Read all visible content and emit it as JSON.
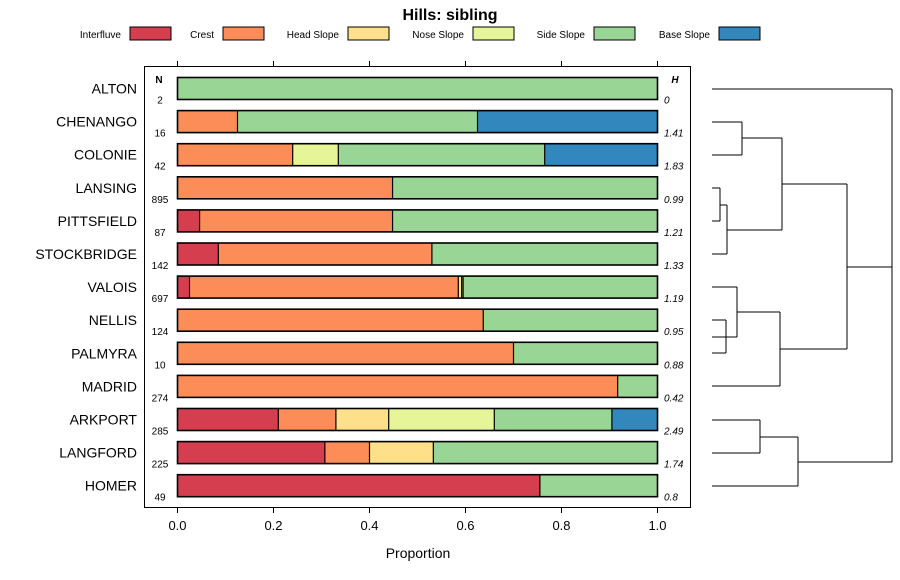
{
  "chart_data": {
    "type": "stacked-bar-horizontal",
    "title": "Hills: sibling",
    "xlabel": "Proportion",
    "xlim": [
      0,
      1
    ],
    "xticks": [
      "0.0",
      "0.2",
      "0.4",
      "0.6",
      "0.8",
      "1.0"
    ],
    "n_header": "N",
    "h_header": "H",
    "categories": [
      "Interfluve",
      "Crest",
      "Head Slope",
      "Nose Slope",
      "Side Slope",
      "Base Slope"
    ],
    "colors": {
      "Interfluve": "#D53E4F",
      "Crest": "#FC8D59",
      "Head Slope": "#FEE08B",
      "Nose Slope": "#E6F598",
      "Side Slope": "#99D594",
      "Base Slope": "#3288BD"
    },
    "rows": [
      {
        "name": "ALTON",
        "n": "2",
        "h": "0",
        "values": [
          0,
          0,
          0,
          0,
          1.0,
          0
        ]
      },
      {
        "name": "CHENANGO",
        "n": "16",
        "h": "1.41",
        "values": [
          0,
          0.125,
          0,
          0,
          0.5,
          0.375
        ]
      },
      {
        "name": "COLONIE",
        "n": "42",
        "h": "1.83",
        "values": [
          0,
          0.24,
          0,
          0.095,
          0.43,
          0.235
        ]
      },
      {
        "name": "LANSING",
        "n": "895",
        "h": "0.99",
        "values": [
          0,
          0.448,
          0,
          0,
          0.552,
          0
        ]
      },
      {
        "name": "PITTSFIELD",
        "n": "87",
        "h": "1.21",
        "values": [
          0.046,
          0.402,
          0,
          0,
          0.552,
          0
        ]
      },
      {
        "name": "STOCKBRIDGE",
        "n": "142",
        "h": "1.33",
        "values": [
          0.085,
          0.445,
          0,
          0,
          0.47,
          0
        ]
      },
      {
        "name": "VALOIS",
        "n": "697",
        "h": "1.19",
        "values": [
          0.025,
          0.56,
          0.007,
          0.003,
          0.405,
          0
        ]
      },
      {
        "name": "NELLIS",
        "n": "124",
        "h": "0.95",
        "values": [
          0,
          0.637,
          0,
          0,
          0.363,
          0
        ]
      },
      {
        "name": "PALMYRA",
        "n": "10",
        "h": "0.88",
        "values": [
          0,
          0.7,
          0,
          0,
          0.3,
          0
        ]
      },
      {
        "name": "MADRID",
        "n": "274",
        "h": "0.42",
        "values": [
          0,
          0.917,
          0,
          0,
          0.083,
          0
        ]
      },
      {
        "name": "ARKPORT",
        "n": "285",
        "h": "2.49",
        "values": [
          0.21,
          0.12,
          0.11,
          0.22,
          0.245,
          0.095
        ]
      },
      {
        "name": "LANGFORD",
        "n": "225",
        "h": "1.74",
        "values": [
          0.307,
          0.093,
          0.133,
          0,
          0.467,
          0
        ]
      },
      {
        "name": "HOMER",
        "n": "49",
        "h": "0.8",
        "values": [
          0.755,
          0,
          0,
          0,
          0.245,
          0
        ]
      }
    ]
  }
}
